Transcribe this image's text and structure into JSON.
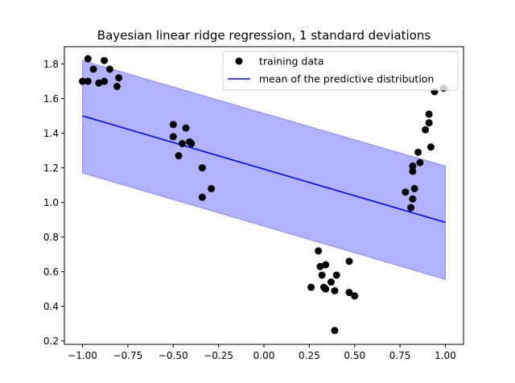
{
  "chart_data": {
    "type": "scatter",
    "title": "Bayesian linear ridge regression, 1 standard deviations",
    "xlabel": "",
    "ylabel": "",
    "xlim": [
      -1.1,
      1.1
    ],
    "ylim": [
      0.18,
      1.9
    ],
    "xticks": [
      -1.0,
      -0.75,
      -0.5,
      -0.25,
      0.0,
      0.25,
      0.5,
      0.75,
      1.0
    ],
    "xtick_labels": [
      "−1.00",
      "−0.75",
      "−0.50",
      "−0.25",
      "0.00",
      "0.25",
      "0.50",
      "0.75",
      "1.00"
    ],
    "yticks": [
      0.2,
      0.4,
      0.6,
      0.8,
      1.0,
      1.2,
      1.4,
      1.6,
      1.8
    ],
    "ytick_labels": [
      "0.2",
      "0.4",
      "0.6",
      "0.8",
      "1.0",
      "1.2",
      "1.4",
      "1.6",
      "1.8"
    ],
    "legend_position": "top-right",
    "grid": false,
    "series": [
      {
        "name": "training data",
        "kind": "scatter",
        "color": "#000000",
        "points": [
          [
            -1.0,
            1.7
          ],
          [
            -0.97,
            1.83
          ],
          [
            -0.97,
            1.7
          ],
          [
            -0.94,
            1.77
          ],
          [
            -0.91,
            1.69
          ],
          [
            -0.88,
            1.82
          ],
          [
            -0.88,
            1.7
          ],
          [
            -0.85,
            1.77
          ],
          [
            -0.81,
            1.67
          ],
          [
            -0.8,
            1.72
          ],
          [
            -0.5,
            1.45
          ],
          [
            -0.5,
            1.38
          ],
          [
            -0.47,
            1.27
          ],
          [
            -0.45,
            1.34
          ],
          [
            -0.43,
            1.43
          ],
          [
            -0.41,
            1.35
          ],
          [
            -0.4,
            1.34
          ],
          [
            -0.34,
            1.2
          ],
          [
            -0.34,
            1.03
          ],
          [
            -0.29,
            1.08
          ],
          [
            0.26,
            0.51
          ],
          [
            0.3,
            0.72
          ],
          [
            0.31,
            0.63
          ],
          [
            0.32,
            0.58
          ],
          [
            0.33,
            0.51
          ],
          [
            0.34,
            0.5
          ],
          [
            0.34,
            0.64
          ],
          [
            0.37,
            0.54
          ],
          [
            0.39,
            0.49
          ],
          [
            0.4,
            0.58
          ],
          [
            0.39,
            0.26
          ],
          [
            0.47,
            0.66
          ],
          [
            0.47,
            0.48
          ],
          [
            0.5,
            0.46
          ],
          [
            0.78,
            1.06
          ],
          [
            0.81,
            0.97
          ],
          [
            0.82,
            1.21
          ],
          [
            0.82,
            1.18
          ],
          [
            0.82,
            1.02
          ],
          [
            0.83,
            1.08
          ],
          [
            0.85,
            1.29
          ],
          [
            0.86,
            1.23
          ],
          [
            0.89,
            1.42
          ],
          [
            0.91,
            1.51
          ],
          [
            0.91,
            1.46
          ],
          [
            0.92,
            1.32
          ],
          [
            0.94,
            1.64
          ],
          [
            0.99,
            1.66
          ]
        ]
      },
      {
        "name": "mean of the predictive distribution",
        "kind": "line",
        "color": "#0000ff",
        "x": [
          -1.0,
          1.0
        ],
        "y": [
          1.5,
          0.885
        ]
      }
    ],
    "band": {
      "color": "#0000ff",
      "opacity": 0.3,
      "x": [
        -1.0,
        1.0
      ],
      "upper": [
        1.82,
        1.21
      ],
      "lower": [
        1.17,
        0.555
      ]
    }
  }
}
